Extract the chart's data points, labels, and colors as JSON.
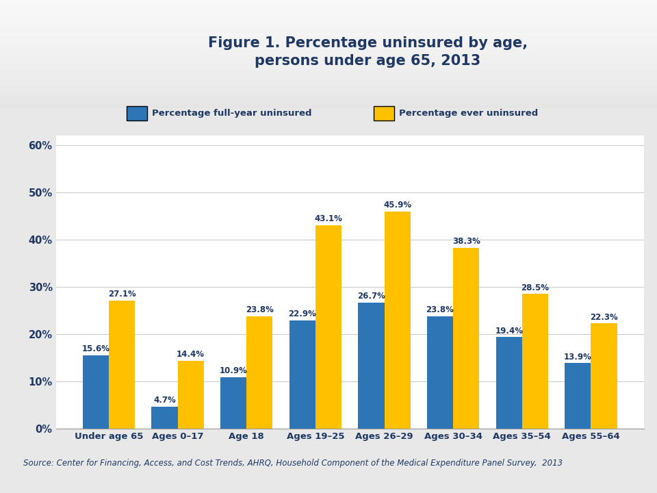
{
  "title": "Figure 1. Percentage uninsured by age,\npersons under age 65, 2013",
  "categories": [
    "Under age 65",
    "Ages 0–17",
    "Age 18",
    "Ages 19–25",
    "Ages 26–29",
    "Ages 30–34",
    "Ages 35–54",
    "Ages 55–64"
  ],
  "full_year": [
    15.6,
    4.7,
    10.9,
    22.9,
    26.7,
    23.8,
    19.4,
    13.9
  ],
  "ever": [
    27.1,
    14.4,
    23.8,
    43.1,
    45.9,
    38.3,
    28.5,
    22.3
  ],
  "bar_color_blue": "#2E75B6",
  "bar_color_gold": "#FFC000",
  "title_color": "#1F3864",
  "label_color": "#1F3864",
  "axis_color": "#1F3864",
  "legend_label_blue": "Percentage full-year uninsured",
  "legend_label_gold": "Percentage ever uninsured",
  "source_text": "Source: Center for Financing, Access, and Cost Trends, AHRQ, Household Component of the Medical Expenditure Panel Survey,  2013",
  "ylim": [
    0,
    0.62
  ],
  "yticks": [
    0.0,
    0.1,
    0.2,
    0.3,
    0.4,
    0.5,
    0.6
  ],
  "ytick_labels": [
    "0%",
    "10%",
    "20%",
    "30%",
    "40%",
    "50%",
    "60%"
  ],
  "background_color": "#E8E8E8",
  "plot_bg_color": "#FFFFFF",
  "separator_color": "#A0A0A0"
}
